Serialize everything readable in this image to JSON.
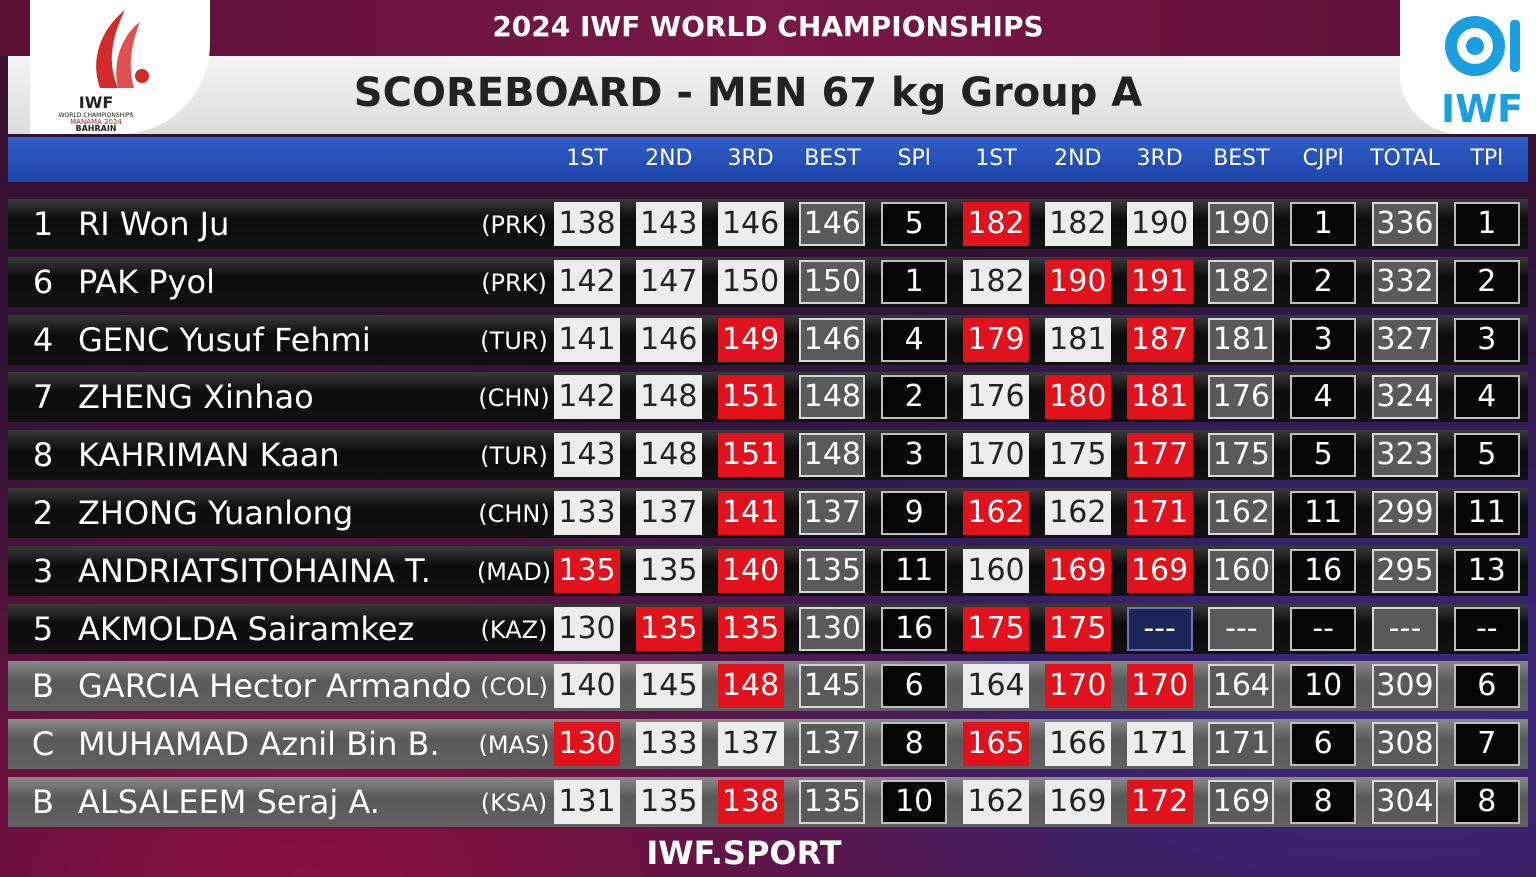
{
  "header": {
    "event": "2024 IWF WORLD CHAMPIONSHIPS",
    "title": "SCOREBOARD - MEN 67 kg Group A",
    "left_logo": [
      "IWF",
      "WORLD CHAMPIONSHIPS",
      "MANAMA 2024",
      "BAHRAIN"
    ],
    "right_logo": "IWF"
  },
  "table": {
    "columns": [
      "1ST",
      "2ND",
      "3RD",
      "BEST",
      "SPl",
      "1ST",
      "2ND",
      "3RD",
      "BEST",
      "CJPl",
      "TOTAL",
      "TPl"
    ],
    "rows": [
      {
        "lot": 1,
        "name": "RI Won Ju",
        "nation": "(PRK)",
        "cells": [
          138,
          143,
          146,
          146,
          5,
          182,
          182,
          190,
          190,
          1,
          336,
          1
        ],
        "status": [
          "good",
          "good",
          "good",
          "best",
          "place",
          "fail",
          "good",
          "good",
          "best",
          "place",
          "best",
          "place"
        ]
      },
      {
        "lot": 6,
        "name": "PAK Pyol",
        "nation": "(PRK)",
        "cells": [
          142,
          147,
          150,
          150,
          1,
          182,
          190,
          191,
          182,
          2,
          332,
          2
        ],
        "status": [
          "good",
          "good",
          "good",
          "best",
          "place",
          "good",
          "fail",
          "fail",
          "best",
          "place",
          "best",
          "place"
        ]
      },
      {
        "lot": 4,
        "name": "GENC Yusuf Fehmi",
        "nation": "(TUR)",
        "cells": [
          141,
          146,
          149,
          146,
          4,
          179,
          181,
          187,
          181,
          3,
          327,
          3
        ],
        "status": [
          "good",
          "good",
          "fail",
          "best",
          "place",
          "fail",
          "good",
          "fail",
          "best",
          "place",
          "best",
          "place"
        ]
      },
      {
        "lot": 7,
        "name": "ZHENG Xinhao",
        "nation": "(CHN)",
        "cells": [
          142,
          148,
          151,
          148,
          2,
          176,
          180,
          181,
          176,
          4,
          324,
          4
        ],
        "status": [
          "good",
          "good",
          "fail",
          "best",
          "place",
          "good",
          "fail",
          "fail",
          "best",
          "place",
          "best",
          "place"
        ]
      },
      {
        "lot": 8,
        "name": "KAHRIMAN Kaan",
        "nation": "(TUR)",
        "cells": [
          143,
          148,
          151,
          148,
          3,
          170,
          175,
          177,
          175,
          5,
          323,
          5
        ],
        "status": [
          "good",
          "good",
          "fail",
          "best",
          "place",
          "good",
          "good",
          "fail",
          "best",
          "place",
          "best",
          "place"
        ]
      },
      {
        "lot": 2,
        "name": "ZHONG Yuanlong",
        "nation": "(CHN)",
        "cells": [
          133,
          137,
          141,
          137,
          9,
          162,
          162,
          171,
          162,
          11,
          299,
          11
        ],
        "status": [
          "good",
          "good",
          "fail",
          "best",
          "place",
          "fail",
          "good",
          "fail",
          "best",
          "place",
          "best",
          "place"
        ]
      },
      {
        "lot": 3,
        "name": "ANDRIATSITOHAINA T.",
        "nation": "(MAD)",
        "cells": [
          135,
          135,
          140,
          135,
          11,
          160,
          169,
          169,
          160,
          16,
          295,
          13
        ],
        "status": [
          "fail",
          "good",
          "fail",
          "best",
          "place",
          "good",
          "fail",
          "fail",
          "best",
          "place",
          "best",
          "place"
        ]
      },
      {
        "lot": 5,
        "name": "AKMOLDA Sairamkez",
        "nation": "(KAZ)",
        "cells": [
          130,
          135,
          135,
          130,
          16,
          175,
          175,
          "---",
          "---",
          "--",
          "---",
          "--"
        ],
        "status": [
          "good",
          "fail",
          "fail",
          "best",
          "place",
          "fail",
          "fail",
          "none",
          "best",
          "place",
          "best",
          "place"
        ]
      },
      {
        "lot": "B",
        "name": "GARCIA Hector Armando",
        "nation": "(COL)",
        "cells": [
          140,
          145,
          148,
          145,
          6,
          164,
          170,
          170,
          164,
          10,
          309,
          6
        ],
        "status": [
          "good",
          "good",
          "fail",
          "best",
          "place",
          "good",
          "fail",
          "fail",
          "best",
          "place",
          "best",
          "place"
        ]
      },
      {
        "lot": "C",
        "name": "MUHAMAD Aznil Bin B.",
        "nation": "(MAS)",
        "cells": [
          130,
          133,
          137,
          137,
          8,
          165,
          166,
          171,
          171,
          6,
          308,
          7
        ],
        "status": [
          "fail",
          "good",
          "good",
          "best",
          "place",
          "fail",
          "good",
          "good",
          "best",
          "place",
          "best",
          "place"
        ]
      },
      {
        "lot": "B",
        "name": "ALSALEEM Seraj A.",
        "nation": "(KSA)",
        "cells": [
          131,
          135,
          138,
          135,
          10,
          162,
          169,
          172,
          169,
          8,
          304,
          8
        ],
        "status": [
          "good",
          "good",
          "fail",
          "best",
          "place",
          "good",
          "good",
          "fail",
          "best",
          "place",
          "best",
          "place"
        ]
      }
    ]
  },
  "footer": "IWF.SPORT"
}
